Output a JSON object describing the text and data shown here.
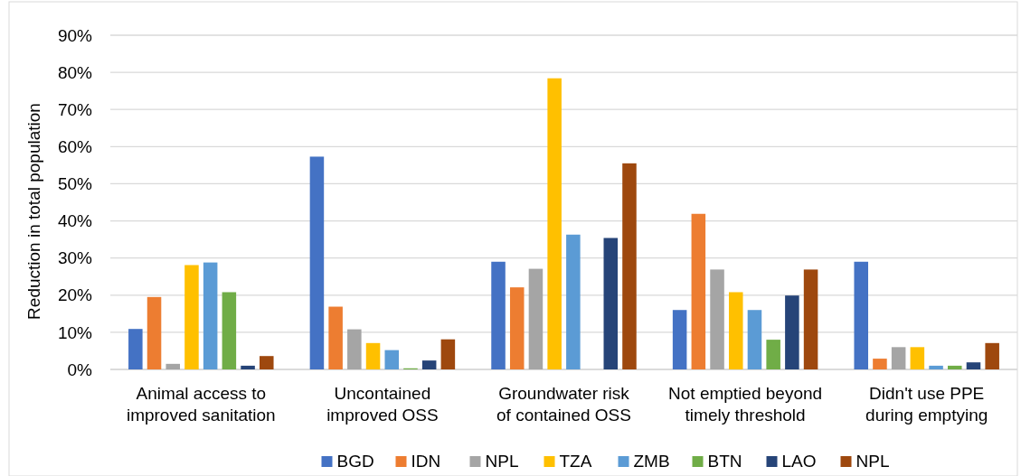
{
  "chart_data": {
    "type": "bar",
    "ylabel": "Reduction in total population",
    "categories": [
      "Animal access to improved sanitation",
      "Uncontained improved OSS",
      "Groundwater risk of contained OSS",
      "Not emptied beyond timely threshold",
      "Didn't use PPE during emptying"
    ],
    "series": [
      {
        "name": "BGD",
        "color": "#4472c4",
        "values": [
          0.109,
          0.573,
          0.29,
          0.16,
          0.29
        ]
      },
      {
        "name": "IDN",
        "color": "#ed7d31",
        "values": [
          0.195,
          0.169,
          0.221,
          0.419,
          0.029
        ]
      },
      {
        "name": "NPL",
        "color": "#a5a5a5",
        "values": [
          0.015,
          0.108,
          0.271,
          0.269,
          0.06
        ]
      },
      {
        "name": "TZA",
        "color": "#ffc000",
        "values": [
          0.281,
          0.071,
          0.784,
          0.208,
          0.06
        ]
      },
      {
        "name": "ZMB",
        "color": "#5b9bd5",
        "values": [
          0.288,
          0.052,
          0.363,
          0.16,
          0.01
        ]
      },
      {
        "name": "BTN",
        "color": "#70ad47",
        "values": [
          0.208,
          0.003,
          null,
          0.08,
          0.01
        ]
      },
      {
        "name": "LAO",
        "color": "#264478",
        "values": [
          0.01,
          0.024,
          0.354,
          0.199,
          0.019
        ]
      },
      {
        "name": "NPL",
        "color": "#9e480e",
        "values": [
          0.036,
          0.081,
          0.555,
          0.269,
          0.071
        ]
      }
    ],
    "ylim": [
      0,
      0.9
    ],
    "yticks": [
      {
        "value": 0,
        "label": "0%"
      },
      {
        "value": 0.1,
        "label": "10%"
      },
      {
        "value": 0.2,
        "label": "20%"
      },
      {
        "value": 0.3,
        "label": "30%"
      },
      {
        "value": 0.4,
        "label": "40%"
      },
      {
        "value": 0.5,
        "label": "50%"
      },
      {
        "value": 0.6,
        "label": "60%"
      },
      {
        "value": 0.7,
        "label": "70%"
      },
      {
        "value": 0.8,
        "label": "80%"
      },
      {
        "value": 0.9,
        "label": "90%"
      }
    ],
    "grid": "y",
    "legend": "bottom"
  }
}
